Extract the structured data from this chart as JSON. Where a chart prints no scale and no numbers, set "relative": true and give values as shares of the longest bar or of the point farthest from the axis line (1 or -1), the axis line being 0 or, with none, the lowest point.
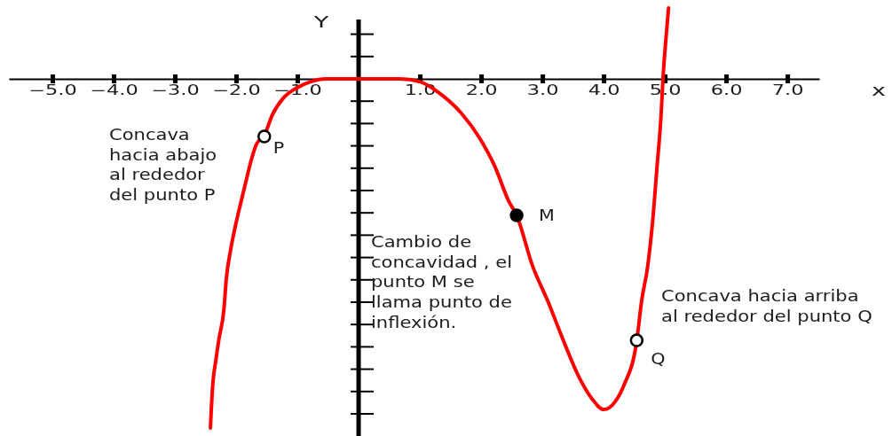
{
  "chart_data": {
    "type": "line",
    "relative": true,
    "ylabel": "Y",
    "xlabel": "x",
    "xlim": [
      -5.71,
      7.52
    ],
    "xticks": [
      {
        "value": -5,
        "label": "−5.0"
      },
      {
        "value": -4,
        "label": "−4.0"
      },
      {
        "value": -3,
        "label": "−3.0"
      },
      {
        "value": -2,
        "label": "−2.0"
      },
      {
        "value": -1,
        "label": "−1.0"
      },
      {
        "value": 1,
        "label": "1.0"
      },
      {
        "value": 2,
        "label": "2.0"
      },
      {
        "value": 3,
        "label": "3.0"
      },
      {
        "value": 4,
        "label": "4.0"
      },
      {
        "value": 5,
        "label": "5.0"
      },
      {
        "value": 6,
        "label": "6.0"
      },
      {
        "value": 7,
        "label": "7.0"
      }
    ],
    "series": [
      {
        "color": "#ff0000",
        "x": [
          -2.42,
          -2.38,
          -2.33,
          -2.28,
          -2.2,
          -2.16,
          -2.09,
          -2.01,
          -1.91,
          -1.84,
          -1.75,
          -1.67,
          -1.54,
          -1.41,
          -1.22,
          -1.03,
          -0.78,
          -0.54,
          0,
          0.67,
          1.0,
          1.32,
          1.68,
          1.97,
          2.22,
          2.45,
          2.58,
          2.84,
          3.09,
          3.32,
          3.61,
          3.81,
          4.0,
          4.19,
          4.33,
          4.54,
          4.62,
          4.72,
          4.8,
          4.87,
          4.94,
          4.97,
          5.01,
          5.06
        ],
        "values": [
          -1.0,
          -0.873,
          -0.805,
          -0.745,
          -0.662,
          -0.573,
          -0.49,
          -0.42,
          -0.345,
          -0.294,
          -0.231,
          -0.188,
          -0.162,
          -0.104,
          -0.053,
          -0.028,
          -0.008,
          0,
          0,
          0,
          -0.008,
          -0.041,
          -0.099,
          -0.168,
          -0.249,
          -0.35,
          -0.391,
          -0.536,
          -0.637,
          -0.739,
          -0.858,
          -0.916,
          -0.947,
          -0.924,
          -0.878,
          -0.751,
          -0.637,
          -0.536,
          -0.409,
          -0.256,
          -0.099,
          0.003,
          0.099,
          0.203
        ]
      },
      {
        "type": "scatter",
        "marker": "circle",
        "color": "#000000",
        "colors": [
          "#ffffff",
          "#000000",
          "#ffffff"
        ],
        "x": [
          -1.54,
          2.58,
          4.54
        ],
        "values": [
          -0.165,
          -0.391,
          -0.749
        ]
      }
    ],
    "annotations": [
      "Concava\nhacia abajo\nal rededor\ndel punto P",
      {
        "text": "P",
        "x": -1.54,
        "y": -0.165
      },
      {
        "text": "M",
        "x": 2.58,
        "y": -0.391
      },
      "Cambio de\nconcavidad , el\npunto M se\nllama punto de\ninflexión.",
      "Concava hacia arriba\nal rededor del punto Q",
      {
        "text": "Q",
        "x": 4.54,
        "y": -0.749
      }
    ]
  }
}
